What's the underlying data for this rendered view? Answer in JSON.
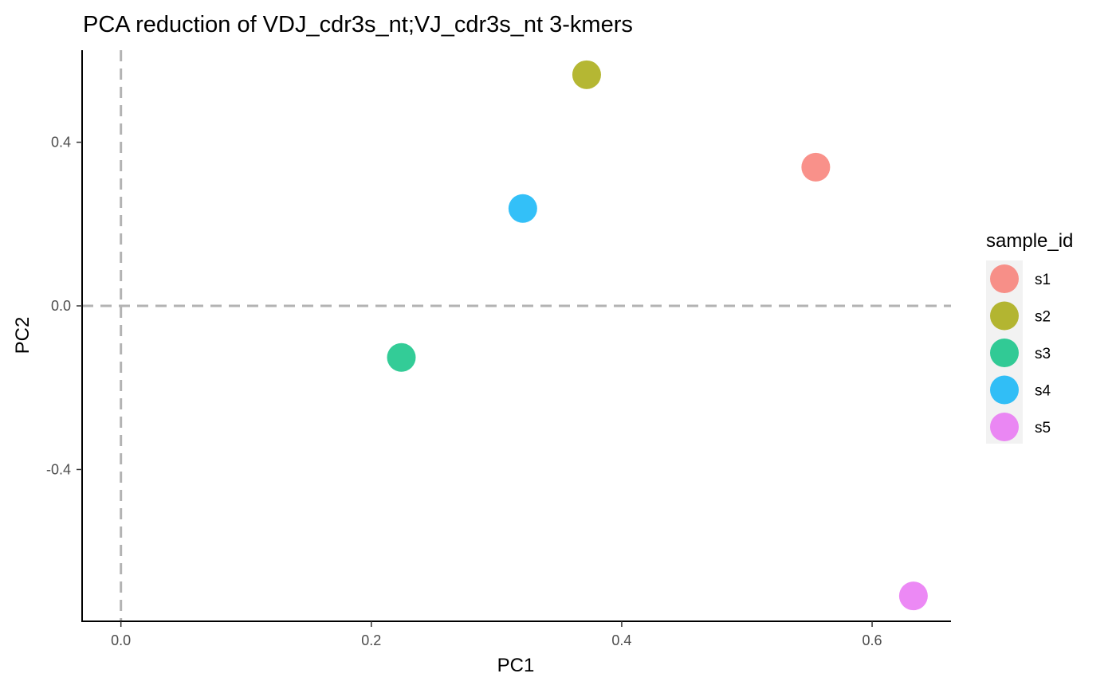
{
  "chart_data": {
    "type": "scatter",
    "title": "PCA reduction of VDJ_cdr3s_nt;VJ_cdr3s_nt 3-kmers",
    "xlabel": "PC1",
    "ylabel": "PC2",
    "xlim": [
      -0.031,
      0.663
    ],
    "ylim": [
      -0.771,
      0.625
    ],
    "x_ticks": [
      0.0,
      0.2,
      0.4,
      0.6
    ],
    "x_tick_labels": [
      "0.0",
      "0.2",
      "0.4",
      "0.6"
    ],
    "y_ticks": [
      0.4,
      0.0,
      -0.4
    ],
    "y_tick_labels": [
      "0.4",
      "0.0",
      "-0.4"
    ],
    "reference_lines": {
      "x": 0,
      "y": 0,
      "style": "dashed",
      "color": "#b3b3b3"
    },
    "grid": false,
    "legend": {
      "title": "sample_id",
      "position": "right"
    },
    "series": [
      {
        "name": "s1",
        "color": "#F8766D",
        "x": [
          0.555
        ],
        "y": [
          0.339
        ]
      },
      {
        "name": "s2",
        "color": "#A3A500",
        "x": [
          0.372
        ],
        "y": [
          0.565
        ]
      },
      {
        "name": "s3",
        "color": "#00BF7D",
        "x": [
          0.224
        ],
        "y": [
          -0.126
        ]
      },
      {
        "name": "s4",
        "color": "#00B0F6",
        "x": [
          0.321
        ],
        "y": [
          0.238
        ]
      },
      {
        "name": "s5",
        "color": "#E76BF3",
        "x": [
          0.633
        ],
        "y": [
          -0.709
        ]
      }
    ]
  }
}
